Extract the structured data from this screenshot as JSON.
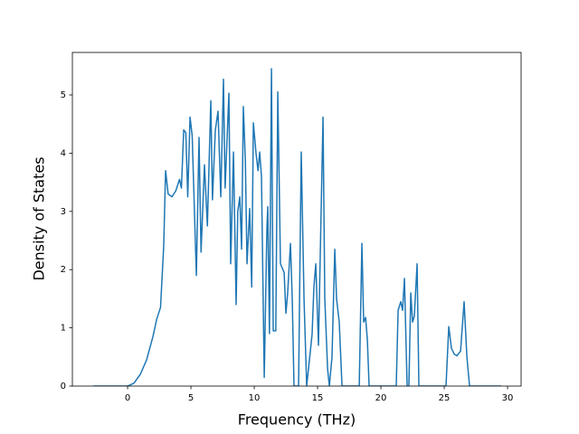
{
  "chart_data": {
    "type": "line",
    "xlabel": "Frequency (THz)",
    "ylabel": "Density of States",
    "color": "#1f77b4",
    "x": [
      -2.7,
      0,
      0.5,
      1,
      1.5,
      2,
      2.3,
      2.6,
      2.85,
      3.0,
      3.2,
      3.5,
      3.8,
      4.1,
      4.25,
      4.43,
      4.6,
      4.75,
      4.93,
      5.1,
      5.43,
      5.64,
      5.8,
      6.07,
      6.3,
      6.57,
      6.7,
      6.93,
      7.14,
      7.36,
      7.57,
      7.7,
      8.0,
      8.14,
      8.36,
      8.57,
      8.7,
      8.86,
      9.0,
      9.14,
      9.3,
      9.43,
      9.64,
      9.8,
      9.93,
      10.14,
      10.3,
      10.43,
      10.57,
      10.79,
      11.0,
      11.07,
      11.2,
      11.36,
      11.5,
      11.7,
      11.86,
      12.07,
      12.36,
      12.5,
      12.64,
      12.86,
      13.0,
      13.14,
      13.5,
      13.71,
      13.93,
      14.14,
      14.43,
      14.57,
      14.71,
      14.86,
      15.07,
      15.43,
      15.57,
      15.79,
      15.93,
      16.14,
      16.36,
      16.5,
      16.71,
      16.93,
      18.29,
      18.5,
      18.64,
      18.79,
      18.93,
      19.07,
      21.21,
      21.36,
      21.57,
      21.71,
      21.86,
      22.07,
      22.21,
      22.36,
      22.5,
      22.64,
      22.86,
      23.0,
      25.14,
      25.36,
      25.57,
      25.79,
      26.0,
      26.29,
      26.57,
      26.79,
      27.0,
      29.5
    ],
    "values": [
      0,
      0,
      0.05,
      0.2,
      0.45,
      0.85,
      1.15,
      1.35,
      2.4,
      3.7,
      3.3,
      3.25,
      3.35,
      3.55,
      3.4,
      4.4,
      4.35,
      3.25,
      4.62,
      4.3,
      1.9,
      4.27,
      2.3,
      3.8,
      2.75,
      4.9,
      3.2,
      4.4,
      4.72,
      3.25,
      5.27,
      3.4,
      5.03,
      2.1,
      4.02,
      1.4,
      3.0,
      3.25,
      2.35,
      4.8,
      3.85,
      2.1,
      3.05,
      1.7,
      4.52,
      4.0,
      3.7,
      4.02,
      3.6,
      0.15,
      2.7,
      3.08,
      0.9,
      5.45,
      0.95,
      0.95,
      5.05,
      2.1,
      1.95,
      1.25,
      1.6,
      2.45,
      1.5,
      0,
      0,
      4.02,
      1.5,
      0,
      0.6,
      0.9,
      1.7,
      2.1,
      0.7,
      4.62,
      1.5,
      0.3,
      0,
      0.5,
      2.35,
      1.5,
      1.1,
      0,
      0,
      2.45,
      1.1,
      1.18,
      0.8,
      0,
      0,
      1.3,
      1.45,
      1.3,
      1.85,
      0,
      0,
      1.6,
      1.1,
      1.2,
      2.1,
      0,
      0,
      1.02,
      0.65,
      0.55,
      0.52,
      0.6,
      1.45,
      0.5,
      0,
      0
    ],
    "xlim": [
      -4.36,
      31.07
    ],
    "ylim": [
      0,
      5.73
    ],
    "xticks": [
      0,
      5,
      10,
      15,
      20,
      25,
      30
    ],
    "yticks": [
      0,
      1,
      2,
      3,
      4,
      5
    ]
  }
}
